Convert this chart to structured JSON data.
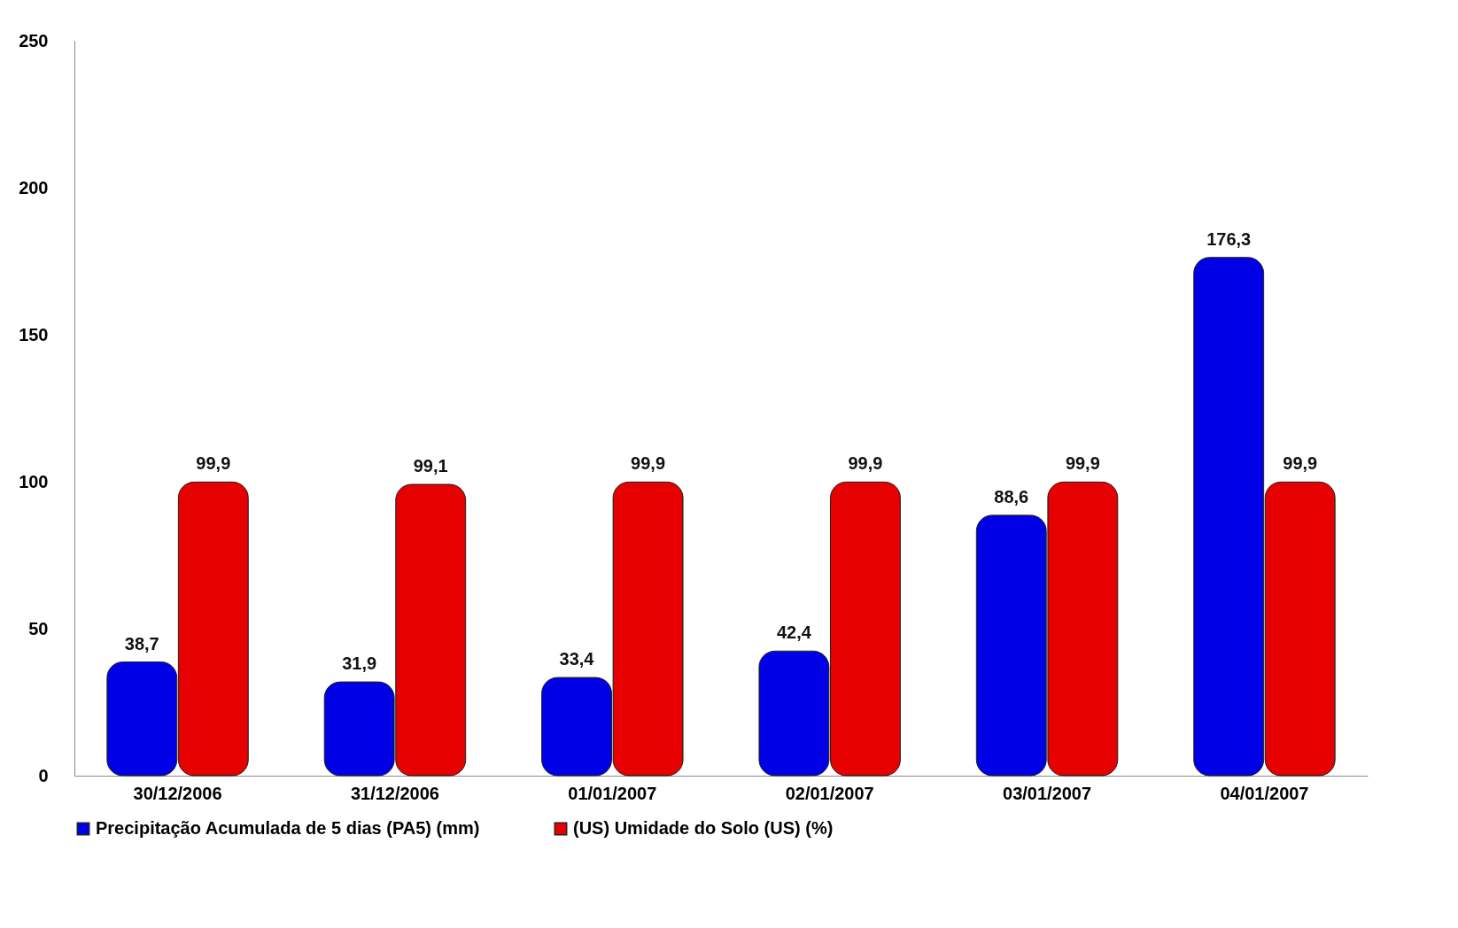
{
  "chart_data": {
    "type": "bar",
    "categories": [
      "30/12/2006",
      "31/12/2006",
      "01/01/2007",
      "02/01/2007",
      "03/01/2007",
      "04/01/2007"
    ],
    "series": [
      {
        "name": "Precipitação Acumulada de 5 dias (PA5) (mm)",
        "color": "#0000e6",
        "values": [
          38.7,
          31.9,
          33.4,
          42.4,
          88.6,
          176.3
        ],
        "value_labels": [
          "38,7",
          "31,9",
          "33,4",
          "42,4",
          "88,6",
          "176,3"
        ]
      },
      {
        "name": "(US) Umidade do Solo (US) (%)",
        "color": "#e60000",
        "values": [
          99.9,
          99.1,
          99.9,
          99.9,
          99.9,
          99.9
        ],
        "value_labels": [
          "99,9",
          "99,1",
          "99,9",
          "99,9",
          "99,9",
          "99,9"
        ]
      }
    ],
    "ylim": [
      0,
      250
    ],
    "yticks": [
      0,
      50,
      100,
      150,
      200,
      250
    ],
    "grid": false,
    "legend": "bottom"
  }
}
